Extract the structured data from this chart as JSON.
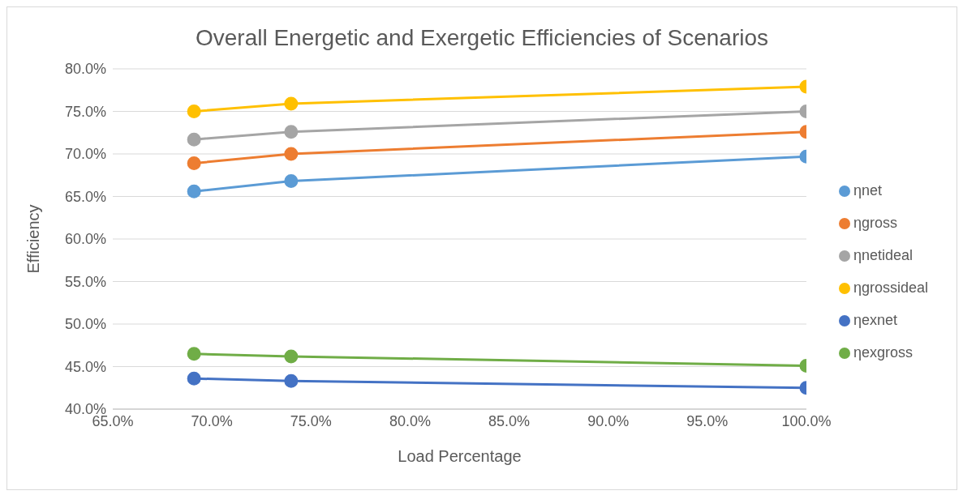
{
  "chart_data": {
    "type": "line",
    "title": "Overall Energetic and Exergetic Efficiencies of Scenarios",
    "xlabel": "Load Percentage",
    "ylabel": "Efficiency",
    "x": [
      69.1,
      74.0,
      100
    ],
    "series": [
      {
        "name": "ηnet",
        "color": "#5b9bd5",
        "values": [
          65.6,
          66.8,
          69.7
        ]
      },
      {
        "name": "ηgross",
        "color": "#ed7d31",
        "values": [
          68.9,
          70.0,
          72.6
        ]
      },
      {
        "name": "ηnetideal",
        "color": "#a5a5a5",
        "values": [
          71.7,
          72.6,
          75.0
        ]
      },
      {
        "name": "ηgrossideal",
        "color": "#ffc000",
        "values": [
          75.0,
          75.9,
          77.9
        ]
      },
      {
        "name": "ηexnet",
        "color": "#4472c4",
        "values": [
          43.6,
          43.3,
          42.5
        ]
      },
      {
        "name": "ηexgross",
        "color": "#70ad47",
        "values": [
          46.5,
          46.2,
          45.1
        ]
      }
    ],
    "xlim": [
      65,
      100
    ],
    "xticks": [
      {
        "value": 65,
        "label": "65.0%"
      },
      {
        "value": 70,
        "label": "70.0%"
      },
      {
        "value": 75,
        "label": "75.0%"
      },
      {
        "value": 80,
        "label": "80.0%"
      },
      {
        "value": 85,
        "label": "85.0%"
      },
      {
        "value": 90,
        "label": "90.0%"
      },
      {
        "value": 95,
        "label": "95.0%"
      },
      {
        "value": 100,
        "label": "100.0%"
      }
    ],
    "ylim": [
      40,
      80
    ],
    "yticks": [
      {
        "value": 40,
        "label": "40.0%"
      },
      {
        "value": 45,
        "label": "45.0%"
      },
      {
        "value": 50,
        "label": "50.0%"
      },
      {
        "value": 55,
        "label": "55.0%"
      },
      {
        "value": 60,
        "label": "60.0%"
      },
      {
        "value": 65,
        "label": "65.0%"
      },
      {
        "value": 70,
        "label": "70.0%"
      },
      {
        "value": 75,
        "label": "75.0%"
      },
      {
        "value": 80,
        "label": "80.0%"
      }
    ],
    "grid": "y",
    "legend": "right",
    "marker": "circle",
    "line_style": "solid"
  }
}
